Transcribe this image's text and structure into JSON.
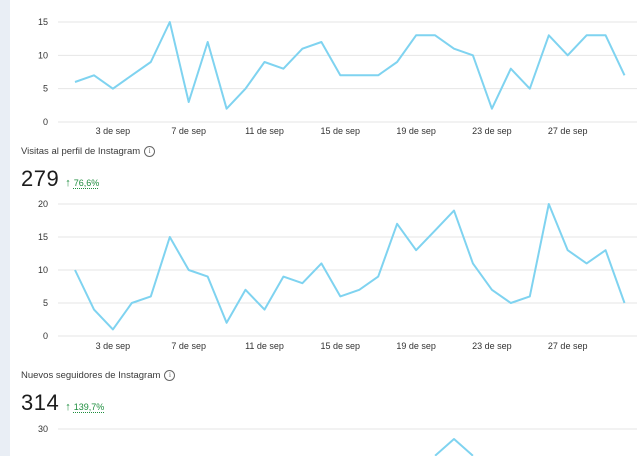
{
  "colors": {
    "line": "#7fd3f0",
    "grid": "#e6e6e6",
    "positive": "#1e8e3e"
  },
  "sections": [
    {
      "label": "",
      "value": "",
      "change": ""
    },
    {
      "label": "Visitas al perfil de Instagram",
      "value": "279",
      "change": "76,6%"
    },
    {
      "label": "Nuevos seguidores de Instagram",
      "value": "314",
      "change": "139,7%"
    }
  ],
  "chart_data": [
    {
      "type": "line",
      "ylim": [
        0,
        15
      ],
      "yticks": [
        0,
        5,
        10,
        15
      ],
      "x_tick_labels": [
        "3 de sep",
        "7 de sep",
        "11 de sep",
        "15 de sep",
        "19 de sep",
        "23 de sep",
        "27 de sep"
      ],
      "x_tick_days": [
        3,
        7,
        11,
        15,
        19,
        23,
        27
      ],
      "x_start_day": 1,
      "values": [
        6,
        7,
        5,
        7,
        9,
        15,
        3,
        12,
        2,
        5,
        9,
        8,
        11,
        12,
        7,
        7,
        7,
        9,
        13,
        13,
        11,
        10,
        2,
        8,
        5,
        13,
        10,
        13,
        13,
        7
      ]
    },
    {
      "type": "line",
      "ylim": [
        0,
        20
      ],
      "yticks": [
        0,
        5,
        10,
        15,
        20
      ],
      "x_tick_labels": [
        "3 de sep",
        "7 de sep",
        "11 de sep",
        "15 de sep",
        "19 de sep",
        "23 de sep",
        "27 de sep"
      ],
      "x_tick_days": [
        3,
        7,
        11,
        15,
        19,
        23,
        27
      ],
      "x_start_day": 1,
      "values": [
        10,
        4,
        1,
        5,
        6,
        15,
        10,
        9,
        2,
        7,
        4,
        9,
        8,
        11,
        6,
        7,
        9,
        17,
        13,
        16,
        19,
        11,
        7,
        5,
        6,
        20,
        13,
        11,
        13,
        5
      ]
    },
    {
      "type": "line",
      "yticks": [
        30
      ],
      "ylim": [
        0,
        30
      ],
      "x_start_day": 1,
      "partial": true,
      "values": [
        null,
        null,
        null,
        null,
        null,
        null,
        null,
        null,
        null,
        null,
        null,
        null,
        null,
        null,
        null,
        null,
        null,
        null,
        null,
        22,
        27,
        22
      ]
    }
  ]
}
